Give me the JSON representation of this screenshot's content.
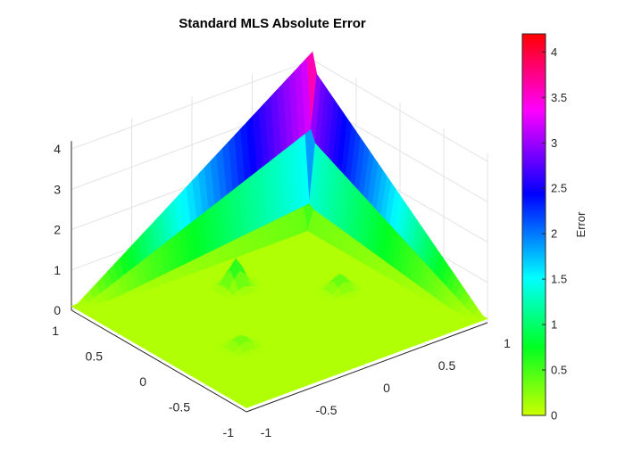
{
  "chart_data": {
    "type": "surface3d",
    "title": "Standard MLS Absolute Error",
    "xlabel": "",
    "ylabel": "",
    "zlabel": "",
    "xlim": [
      -1,
      1
    ],
    "ylim": [
      -1,
      1
    ],
    "zlim": [
      0,
      4.2
    ],
    "x_ticks": [
      "-1",
      "-0.5",
      "0",
      "0.5",
      "1"
    ],
    "y_ticks": [
      "-1",
      "-0.5",
      "0",
      "0.5",
      "1"
    ],
    "z_ticks": [
      "0",
      "1",
      "2",
      "3",
      "4"
    ],
    "grid": true,
    "colormap": "hsv-like",
    "colorbar": {
      "label": "Error",
      "range": [
        0,
        4.2
      ],
      "ticks": [
        "0",
        "0.5",
        "1",
        "1.5",
        "2",
        "2.5",
        "3",
        "3.5",
        "4"
      ],
      "colors": [
        "#ccff00",
        "#00ff22",
        "#00ffff",
        "#0000ff",
        "#ff00ff",
        "#ff0000"
      ]
    },
    "ridges": [
      {
        "axis": "y",
        "at": 1,
        "from": -1,
        "peak_value": 4.2
      },
      {
        "axis": "x",
        "at": 1,
        "from": -1,
        "peak_value": 3.8
      }
    ],
    "baseline_error": 0.1,
    "bumps": [
      {
        "x": 0,
        "y": 0.5,
        "value": 0.8
      },
      {
        "x": 0.5,
        "y": 0,
        "value": 0.5
      },
      {
        "x": -0.5,
        "y": -0.25,
        "value": 0.4
      }
    ]
  }
}
